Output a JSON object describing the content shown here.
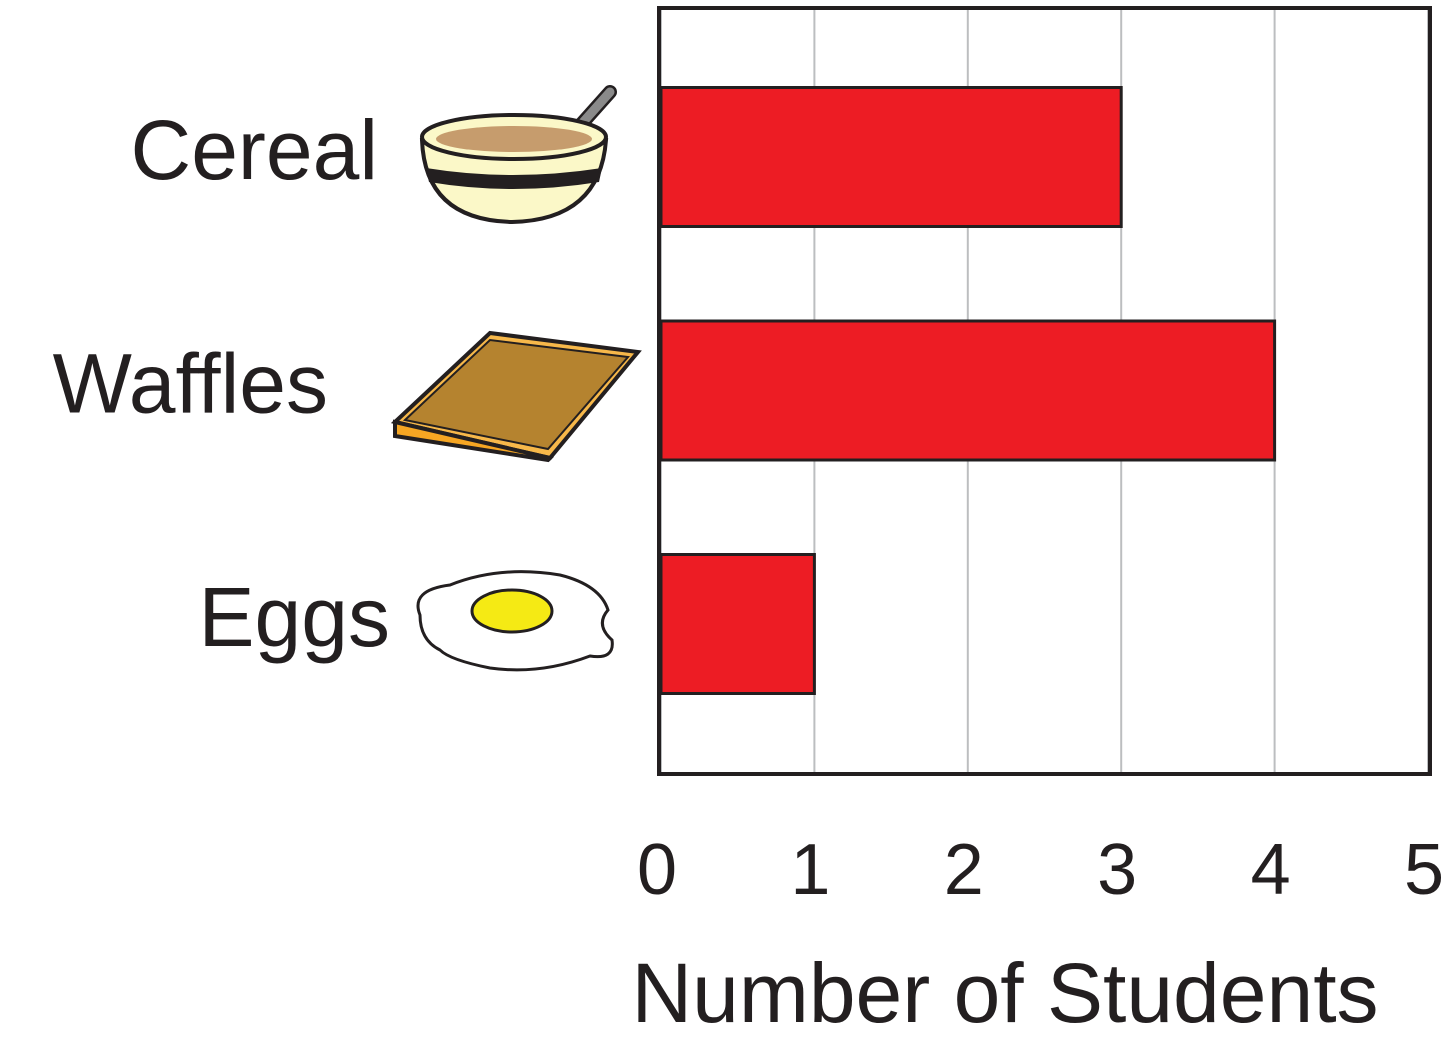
{
  "chart_data": {
    "type": "barh",
    "categories": [
      "Cereal",
      "Waffles",
      "Eggs"
    ],
    "values": [
      3,
      4,
      1
    ],
    "color": "#ed1c24",
    "xlim": [
      0,
      5
    ],
    "xticks": [
      0,
      1,
      2,
      3,
      4,
      5
    ],
    "xlabel": "Number of Students",
    "grid": true
  }
}
